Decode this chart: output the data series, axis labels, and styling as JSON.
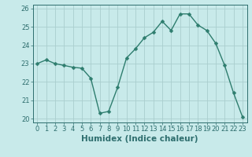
{
  "x": [
    0,
    1,
    2,
    3,
    4,
    5,
    6,
    7,
    8,
    9,
    10,
    11,
    12,
    13,
    14,
    15,
    16,
    17,
    18,
    19,
    20,
    21,
    22,
    23
  ],
  "y": [
    23.0,
    23.2,
    23.0,
    22.9,
    22.8,
    22.75,
    22.2,
    20.3,
    20.4,
    21.7,
    23.3,
    23.8,
    24.4,
    24.7,
    25.3,
    24.8,
    25.7,
    25.7,
    25.1,
    24.8,
    24.1,
    22.9,
    21.4,
    20.1
  ],
  "line_color": "#2e7d6e",
  "marker": "D",
  "marker_size": 2.5,
  "bg_color": "#c8eaea",
  "grid_color": "#aacece",
  "xlabel": "Humidex (Indice chaleur)",
  "ylabel": "",
  "xlim": [
    -0.5,
    23.5
  ],
  "ylim": [
    19.8,
    26.2
  ],
  "yticks": [
    20,
    21,
    22,
    23,
    24,
    25,
    26
  ],
  "xticks": [
    0,
    1,
    2,
    3,
    4,
    5,
    6,
    7,
    8,
    9,
    10,
    11,
    12,
    13,
    14,
    15,
    16,
    17,
    18,
    19,
    20,
    21,
    22,
    23
  ],
  "tick_color": "#2e6e6e",
  "xlabel_fontsize": 7.5,
  "tick_fontsize": 6.0,
  "linewidth": 1.0
}
